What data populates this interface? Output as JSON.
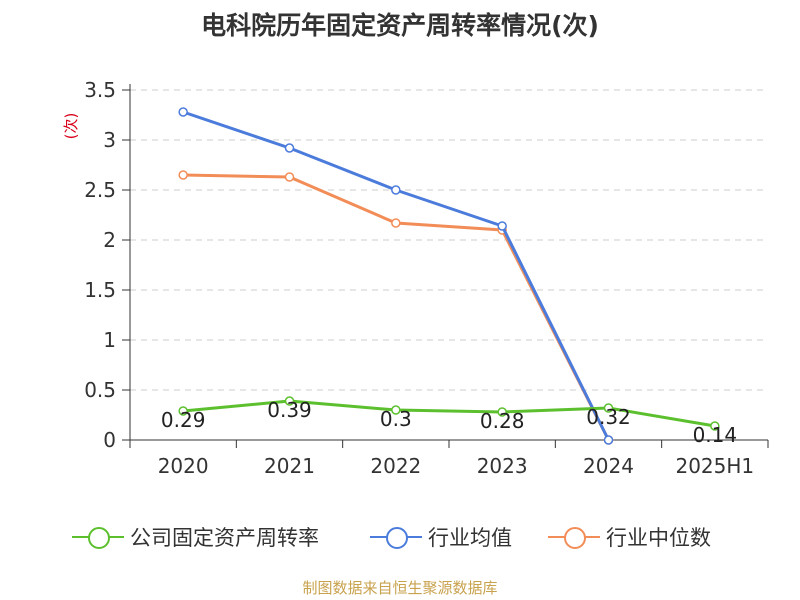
{
  "title": "电科院历年固定资产周转率情况(次)",
  "source": "制图数据来自恒生聚源数据库",
  "chart_data": {
    "type": "line",
    "title": "电科院历年固定资产周转率情况(次)",
    "ylabel": "(次)",
    "xlabel": "",
    "categories": [
      "2020",
      "2021",
      "2022",
      "2023",
      "2024",
      "2025H1"
    ],
    "ylim": [
      0,
      3.5
    ],
    "yticks": [
      "0",
      "0.5",
      "1",
      "1.5",
      "2",
      "2.5",
      "3",
      "3.5"
    ],
    "grid": true,
    "legend_position": "bottom",
    "series": [
      {
        "name": "公司固定资产周转率",
        "color": "#5cc02e",
        "values": [
          0.29,
          0.39,
          0.3,
          0.28,
          0.32,
          0.14
        ],
        "labels": [
          "0.29",
          "0.39",
          "0.3",
          "0.28",
          "0.32",
          "0.14"
        ]
      },
      {
        "name": "行业均值",
        "color": "#4b7bdb",
        "values": [
          3.28,
          2.92,
          2.5,
          2.14,
          0,
          null
        ]
      },
      {
        "name": "行业中位数",
        "color": "#f28d58",
        "values": [
          2.65,
          2.63,
          2.17,
          2.1,
          0,
          null
        ]
      }
    ]
  }
}
